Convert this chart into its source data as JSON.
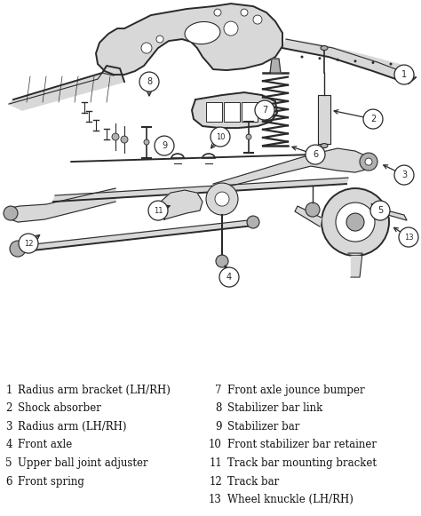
{
  "background_color": "#ffffff",
  "legend_left": [
    [
      "1",
      "Radius arm bracket (LH/RH)"
    ],
    [
      "2",
      "Shock absorber"
    ],
    [
      "3",
      "Radius arm (LH/RH)"
    ],
    [
      "4",
      "Front axle"
    ],
    [
      "5",
      "Upper ball joint adjuster"
    ],
    [
      "6",
      "Front spring"
    ]
  ],
  "legend_right": [
    [
      "7",
      "Front axle jounce bumper"
    ],
    [
      "8",
      "Stabilizer bar link"
    ],
    [
      "9",
      "Stabilizer bar"
    ],
    [
      "10",
      "Front stabilizer bar retainer"
    ],
    [
      "11",
      "Track bar mounting bracket"
    ],
    [
      "12",
      "Track bar"
    ],
    [
      "13",
      "Wheel knuckle (LH/RH)"
    ]
  ],
  "figsize": [
    4.74,
    5.81
  ],
  "dpi": 100
}
